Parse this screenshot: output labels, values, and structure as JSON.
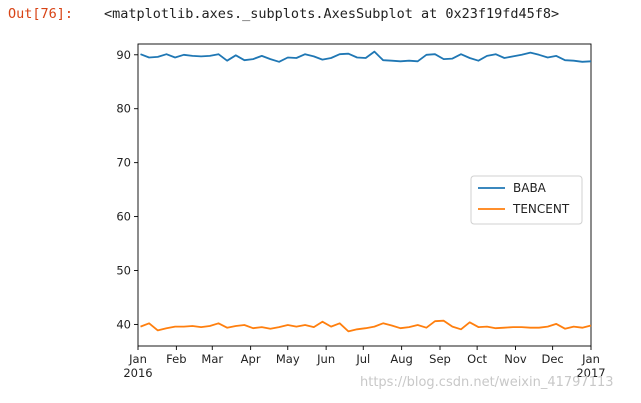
{
  "cell_output": {
    "prompt": "Out[76]:",
    "repr": "<matplotlib.axes._subplots.AxesSubplot at 0x23f19fd45f8>"
  },
  "watermark": "https://blog.csdn.net/weixin_41797113",
  "chart_data": {
    "type": "line",
    "title": "",
    "xlabel": "",
    "ylabel": "",
    "ylim": [
      36,
      92
    ],
    "yticks": [
      40,
      50,
      60,
      70,
      80,
      90
    ],
    "xlim": [
      "2016-01-01",
      "2017-01-01"
    ],
    "xticks": [
      {
        "date": "2016-01-01",
        "label": "Jan",
        "sublabel": "2016"
      },
      {
        "date": "2016-02-01",
        "label": "Feb"
      },
      {
        "date": "2016-03-01",
        "label": "Mar"
      },
      {
        "date": "2016-04-01",
        "label": "Apr"
      },
      {
        "date": "2016-05-01",
        "label": "May"
      },
      {
        "date": "2016-06-01",
        "label": "Jun"
      },
      {
        "date": "2016-07-01",
        "label": "Jul"
      },
      {
        "date": "2016-08-01",
        "label": "Aug"
      },
      {
        "date": "2016-09-01",
        "label": "Sep"
      },
      {
        "date": "2016-10-01",
        "label": "Oct"
      },
      {
        "date": "2016-11-01",
        "label": "Nov"
      },
      {
        "date": "2016-12-01",
        "label": "Dec"
      },
      {
        "date": "2017-01-01",
        "label": "Jan",
        "sublabel": "2017"
      }
    ],
    "grid": false,
    "legend_position": "center-right",
    "x": [
      "2016-01-03",
      "2016-01-10",
      "2016-01-17",
      "2016-01-24",
      "2016-01-31",
      "2016-02-07",
      "2016-02-14",
      "2016-02-21",
      "2016-02-28",
      "2016-03-06",
      "2016-03-13",
      "2016-03-20",
      "2016-03-27",
      "2016-04-03",
      "2016-04-10",
      "2016-04-17",
      "2016-04-24",
      "2016-05-01",
      "2016-05-08",
      "2016-05-15",
      "2016-05-22",
      "2016-05-29",
      "2016-06-05",
      "2016-06-12",
      "2016-06-19",
      "2016-06-26",
      "2016-07-03",
      "2016-07-10",
      "2016-07-17",
      "2016-07-24",
      "2016-07-31",
      "2016-08-07",
      "2016-08-14",
      "2016-08-21",
      "2016-08-28",
      "2016-09-04",
      "2016-09-11",
      "2016-09-18",
      "2016-09-25",
      "2016-10-02",
      "2016-10-09",
      "2016-10-16",
      "2016-10-23",
      "2016-10-30",
      "2016-11-06",
      "2016-11-13",
      "2016-11-20",
      "2016-11-27",
      "2016-12-04",
      "2016-12-11",
      "2016-12-18",
      "2016-12-25",
      "2017-01-01"
    ],
    "series": [
      {
        "name": "BABA",
        "color": "#1f77b4",
        "values": [
          90.1,
          89.5,
          89.6,
          90.1,
          89.5,
          90.0,
          89.8,
          89.7,
          89.8,
          90.1,
          88.9,
          89.9,
          89.0,
          89.2,
          89.8,
          89.2,
          88.7,
          89.5,
          89.4,
          90.1,
          89.7,
          89.1,
          89.4,
          90.1,
          90.2,
          89.5,
          89.4,
          90.6,
          89.0,
          88.9,
          88.8,
          88.9,
          88.8,
          90.0,
          90.1,
          89.2,
          89.3,
          90.1,
          89.4,
          88.9,
          89.8,
          90.1,
          89.4,
          89.7,
          90.0,
          90.4,
          90.0,
          89.5,
          89.8,
          89.0,
          88.9,
          88.7,
          88.8
        ]
      },
      {
        "name": "TENCENT",
        "color": "#ff7f0e",
        "values": [
          39.6,
          40.2,
          38.9,
          39.3,
          39.6,
          39.6,
          39.7,
          39.5,
          39.7,
          40.2,
          39.4,
          39.7,
          39.9,
          39.3,
          39.5,
          39.2,
          39.5,
          39.9,
          39.6,
          39.9,
          39.5,
          40.5,
          39.6,
          40.2,
          38.7,
          39.1,
          39.3,
          39.6,
          40.2,
          39.8,
          39.3,
          39.5,
          39.9,
          39.4,
          40.6,
          40.7,
          39.6,
          39.1,
          40.4,
          39.5,
          39.6,
          39.3,
          39.4,
          39.5,
          39.5,
          39.4,
          39.4,
          39.6,
          40.1,
          39.2,
          39.6,
          39.4,
          39.8
        ]
      }
    ]
  }
}
